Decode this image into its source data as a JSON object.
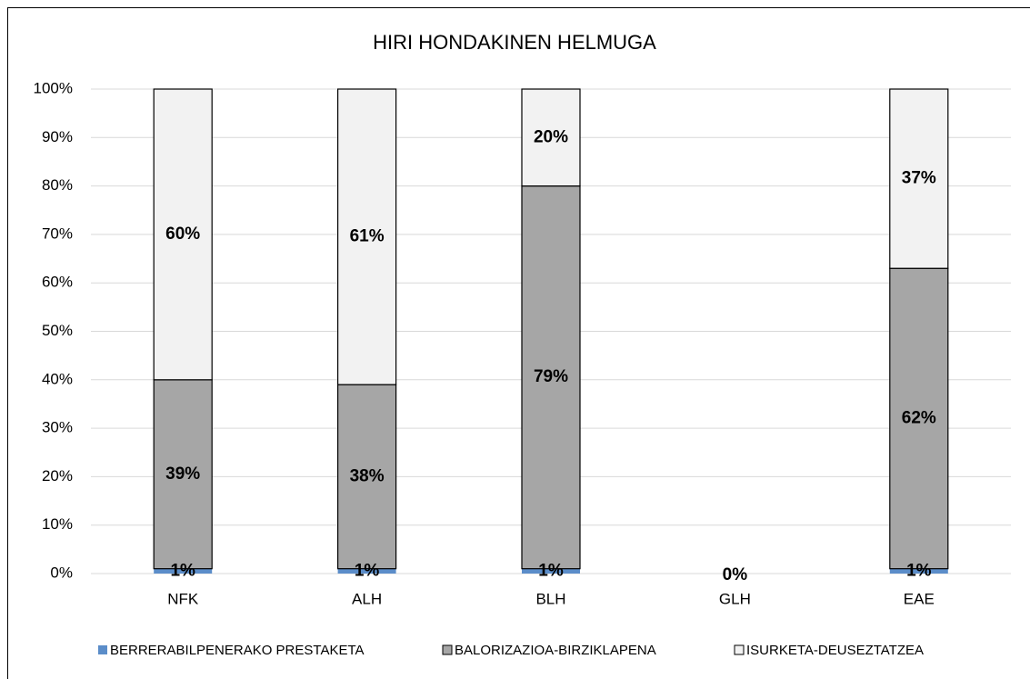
{
  "chart_data": {
    "type": "stacked_bar",
    "title": "HIRI HONDAKINEN HELMUGA",
    "categories": [
      "NFK",
      "ALH",
      "BLH",
      "GLH",
      "EAE"
    ],
    "series": [
      {
        "name": "BERRERABILPENERAKO PRESTAKETA",
        "color": "#5b8dc9",
        "values": [
          1,
          1,
          1,
          0,
          1
        ],
        "value_labels": [
          "1%",
          "1%",
          "1%",
          "0%",
          "1%"
        ]
      },
      {
        "name": "BALORIZAZIOA-BIRZIKLAPENA",
        "color": "#a6a6a6",
        "values": [
          39,
          38,
          79,
          null,
          62
        ],
        "value_labels": [
          "39%",
          "38%",
          "79%",
          null,
          "62%"
        ]
      },
      {
        "name": "ISURKETA-DEUSEZTATZEA",
        "color": "#f2f2f2",
        "values": [
          60,
          61,
          20,
          null,
          37
        ],
        "value_labels": [
          "60%",
          "61%",
          "20%",
          null,
          "37%"
        ]
      }
    ],
    "ylim": [
      0,
      100
    ],
    "yticks": [
      {
        "value": 0,
        "label": "0%"
      },
      {
        "value": 10,
        "label": "10%"
      },
      {
        "value": 20,
        "label": "20%"
      },
      {
        "value": 30,
        "label": "30%"
      },
      {
        "value": 40,
        "label": "40%"
      },
      {
        "value": 50,
        "label": "50%"
      },
      {
        "value": 60,
        "label": "60%"
      },
      {
        "value": 70,
        "label": "70%"
      },
      {
        "value": 80,
        "label": "80%"
      },
      {
        "value": 90,
        "label": "90%"
      },
      {
        "value": 100,
        "label": "100%"
      }
    ],
    "grid": true,
    "legend": "bottom"
  }
}
